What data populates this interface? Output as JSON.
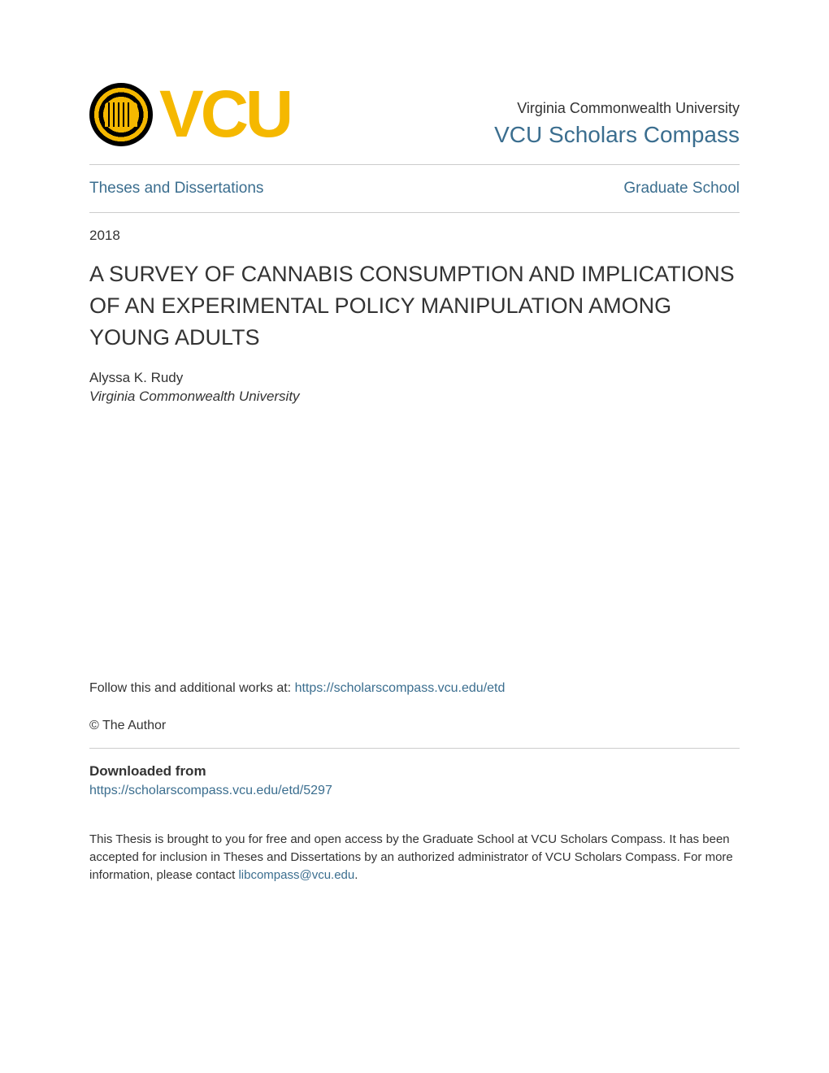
{
  "header": {
    "logo_text": "VCU",
    "university_name": "Virginia Commonwealth University",
    "scholars_compass": "VCU Scholars Compass"
  },
  "breadcrumb": {
    "left": "Theses and Dissertations",
    "right": "Graduate School"
  },
  "year": "2018",
  "title": "A SURVEY OF CANNABIS CONSUMPTION AND IMPLICATIONS OF AN EXPERIMENTAL POLICY MANIPULATION AMONG YOUNG ADULTS",
  "author": "Alyssa K. Rudy",
  "affiliation": "Virginia Commonwealth University",
  "follow_text": "Follow this and additional works at: ",
  "follow_link": "https://scholarscompass.vcu.edu/etd",
  "copyright": "© The Author",
  "downloaded_heading": "Downloaded from",
  "download_link": "https://scholarscompass.vcu.edu/etd/5297",
  "footer": {
    "text_before": "This Thesis is brought to you for free and open access by the Graduate School at VCU Scholars Compass. It has been accepted for inclusion in Theses and Dissertations by an authorized administrator of VCU Scholars Compass. For more information, please contact ",
    "contact_link": "libcompass@vcu.edu",
    "text_after": "."
  },
  "colors": {
    "logo_gold": "#f5b800",
    "link_blue": "#3b6e8f",
    "text_dark": "#333333",
    "divider": "#cccccc",
    "background": "#ffffff"
  }
}
